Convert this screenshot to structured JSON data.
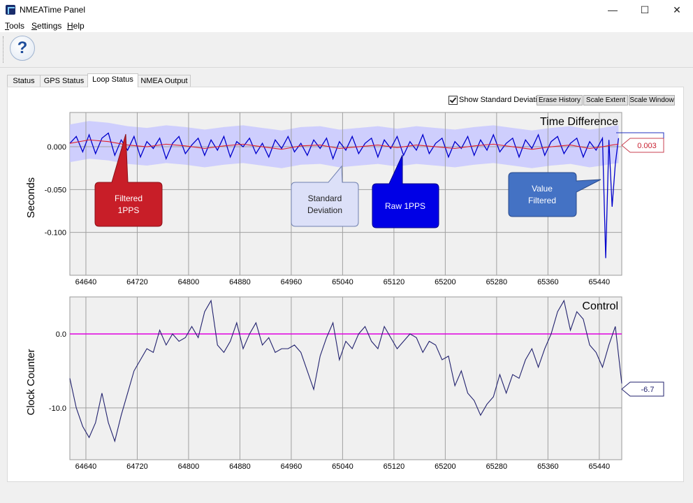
{
  "window": {
    "title": "NMEATime Panel",
    "minimize": "—",
    "maximize": "☐",
    "close": "✕"
  },
  "menu": [
    {
      "key": "T",
      "rest": "ools"
    },
    {
      "key": "S",
      "rest": "ettings"
    },
    {
      "key": "H",
      "rest": "elp"
    }
  ],
  "toolbar": {
    "help_icon": "?"
  },
  "tabs": [
    {
      "label": "Status",
      "active": false
    },
    {
      "label": "GPS Status",
      "active": false
    },
    {
      "label": "Loop Status",
      "active": true
    },
    {
      "label": "NMEA Output",
      "active": false
    }
  ],
  "controls": {
    "show_std_dev": {
      "label": "Show Standard Deviation",
      "checked": true
    },
    "buttons": [
      "Erase History",
      "Scale Extent",
      "Scale Window"
    ]
  },
  "colors": {
    "raw": "#0000cc",
    "filtered": "#e0202a",
    "stddev_band": "#c8c8ff",
    "control_line": "#22226e",
    "zero_line": "#e000e0",
    "plot_bg": "#f0f0f0"
  },
  "callouts": {
    "filtered": "Filtered 1PPS",
    "stddev": "Standard Deviation",
    "raw": "Raw 1PPS",
    "value": "Value Filtered"
  },
  "chart_data": [
    {
      "type": "line",
      "title": "Time Difference",
      "ylabel": "Seconds",
      "xlabel": "",
      "xlim": [
        64615,
        65475
      ],
      "ylim": [
        -0.15,
        0.04
      ],
      "x_ticks": [
        64640,
        64720,
        64800,
        64880,
        64960,
        65040,
        65120,
        65200,
        65280,
        65360,
        65440
      ],
      "y_ticks": [
        0.0,
        -0.05,
        -0.1
      ],
      "y_tick_labels": [
        "0.000",
        "-0.050",
        "-0.100"
      ],
      "grid": true,
      "std_dev_band": {
        "half_width": 0.022
      },
      "value_label": "0.003",
      "series": [
        {
          "role": "raw",
          "x": [
            64615,
            64625,
            64635,
            64645,
            64655,
            64665,
            64675,
            64685,
            64695,
            64705,
            64715,
            64725,
            64735,
            64745,
            64755,
            64765,
            64775,
            64785,
            64795,
            64805,
            64815,
            64825,
            64835,
            64845,
            64855,
            64865,
            64875,
            64885,
            64895,
            64905,
            64915,
            64925,
            64935,
            64945,
            64955,
            64965,
            64975,
            64985,
            64995,
            65005,
            65015,
            65025,
            65035,
            65045,
            65055,
            65065,
            65075,
            65085,
            65095,
            65105,
            65115,
            65125,
            65135,
            65145,
            65155,
            65165,
            65175,
            65185,
            65195,
            65205,
            65215,
            65225,
            65235,
            65245,
            65255,
            65265,
            65275,
            65285,
            65295,
            65305,
            65315,
            65325,
            65335,
            65345,
            65355,
            65365,
            65375,
            65385,
            65395,
            65405,
            65415,
            65425,
            65435,
            65445,
            65450,
            65455,
            65460,
            65465,
            65470
          ],
          "y": [
            0.004,
            0.012,
            -0.006,
            0.014,
            -0.008,
            0.01,
            0.016,
            -0.01,
            0.008,
            -0.004,
            0.012,
            -0.012,
            0.006,
            -0.002,
            0.01,
            -0.014,
            0.004,
            0.012,
            -0.008,
            0.002,
            0.01,
            -0.01,
            0.008,
            -0.004,
            0.012,
            -0.012,
            0.006,
            0.0,
            0.01,
            -0.008,
            0.004,
            -0.012,
            0.008,
            -0.002,
            0.012,
            -0.006,
            0.004,
            -0.01,
            0.008,
            -0.002,
            0.01,
            -0.014,
            0.006,
            -0.004,
            0.012,
            -0.008,
            0.004,
            0.01,
            -0.012,
            0.008,
            -0.002,
            0.012,
            -0.01,
            0.006,
            -0.004,
            0.014,
            -0.008,
            0.004,
            0.01,
            -0.012,
            0.006,
            -0.002,
            0.012,
            -0.01,
            0.008,
            -0.004,
            0.014,
            -0.006,
            0.004,
            0.01,
            -0.012,
            0.008,
            -0.002,
            0.014,
            -0.01,
            0.006,
            0.012,
            -0.008,
            0.004,
            0.01,
            -0.012,
            0.006,
            -0.004,
            0.01,
            -0.13,
            0.008,
            -0.07,
            -0.02,
            0.01
          ]
        },
        {
          "role": "filtered",
          "x": [
            64615,
            64645,
            64675,
            64705,
            64735,
            64765,
            64795,
            64825,
            64855,
            64885,
            64915,
            64945,
            64975,
            65005,
            65035,
            65065,
            65095,
            65125,
            65155,
            65185,
            65215,
            65245,
            65275,
            65305,
            65335,
            65365,
            65395,
            65425,
            65445,
            65460,
            65470
          ],
          "y": [
            0.004,
            0.008,
            0.006,
            0.002,
            0.0,
            0.003,
            0.001,
            -0.002,
            0.001,
            0.003,
            0.0,
            -0.003,
            0.001,
            0.002,
            -0.002,
            0.0,
            0.002,
            -0.001,
            0.002,
            0.0,
            -0.002,
            0.001,
            0.003,
            0.0,
            -0.003,
            0.0,
            0.002,
            -0.002,
            0.0,
            0.002,
            0.003
          ]
        }
      ]
    },
    {
      "type": "line",
      "title": "Control",
      "ylabel": "Clock Counter",
      "xlabel": "",
      "xlim": [
        64615,
        65475
      ],
      "ylim": [
        -17,
        5
      ],
      "x_ticks": [
        64640,
        64720,
        64800,
        64880,
        64960,
        65040,
        65120,
        65200,
        65280,
        65360,
        65440
      ],
      "y_ticks": [
        0.0,
        -10.0
      ],
      "y_tick_labels": [
        "0.0",
        "-10.0"
      ],
      "grid": true,
      "zero_line": 0.0,
      "value_label": "-6.7",
      "series": [
        {
          "role": "control",
          "x": [
            64615,
            64625,
            64635,
            64645,
            64655,
            64665,
            64675,
            64685,
            64695,
            64705,
            64715,
            64725,
            64735,
            64745,
            64755,
            64765,
            64775,
            64785,
            64795,
            64805,
            64815,
            64825,
            64835,
            64845,
            64855,
            64865,
            64875,
            64885,
            64895,
            64905,
            64915,
            64925,
            64935,
            64945,
            64955,
            64965,
            64975,
            64985,
            64995,
            65005,
            65015,
            65025,
            65035,
            65045,
            65055,
            65065,
            65075,
            65085,
            65095,
            65105,
            65115,
            65125,
            65135,
            65145,
            65155,
            65165,
            65175,
            65185,
            65195,
            65205,
            65215,
            65225,
            65235,
            65245,
            65255,
            65265,
            65275,
            65285,
            65295,
            65305,
            65315,
            65325,
            65335,
            65345,
            65355,
            65365,
            65375,
            65385,
            65395,
            65405,
            65415,
            65425,
            65435,
            65445,
            65455,
            65465,
            65475
          ],
          "y": [
            -6,
            -10,
            -12.5,
            -14,
            -12,
            -8,
            -12,
            -14.5,
            -11,
            -8,
            -5,
            -3.5,
            -2,
            -2.5,
            0.5,
            -1.5,
            0,
            -1,
            -0.5,
            1,
            -0.5,
            3,
            4.5,
            -1.5,
            -2.5,
            -1,
            1.5,
            -2,
            0,
            1.5,
            -1.5,
            -0.5,
            -2.5,
            -2,
            -2,
            -1.5,
            -2.5,
            -5,
            -7.5,
            -3,
            -0.5,
            1.5,
            -3.5,
            -1,
            -2,
            0,
            1,
            -1,
            -2,
            1,
            -0.5,
            -2,
            -1,
            0,
            -0.5,
            -2.5,
            -1,
            -1.5,
            -3.5,
            -3,
            -7,
            -5,
            -8,
            -9,
            -11,
            -9.5,
            -8.5,
            -5.5,
            -8,
            -5.5,
            -6,
            -3.5,
            -2,
            -4.5,
            -2,
            0,
            3,
            4.5,
            0.5,
            3,
            2,
            -1.5,
            -2.5,
            -4.5,
            -1.5,
            1,
            -6.7
          ]
        }
      ]
    }
  ]
}
